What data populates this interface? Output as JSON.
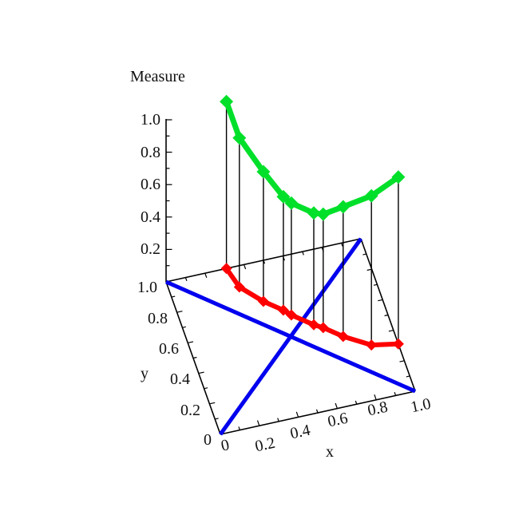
{
  "figure": {
    "title": "Measure",
    "x_axis": {
      "label": "x",
      "tick_labels": [
        "0",
        "0.2",
        "0.4",
        "0.6",
        "0.8",
        "1.0"
      ]
    },
    "y_axis": {
      "label": "y",
      "tick_labels": [
        "1.0",
        "0.8",
        "0.6",
        "0.4",
        "0.2",
        "0"
      ]
    },
    "z_axis": {
      "label": "Measure",
      "tick_labels": [
        "1.0",
        "0.8",
        "0.6",
        "0.4",
        "0.2"
      ]
    }
  },
  "chart_data": {
    "type": "line",
    "subtype": "3d space curve with base-plane projection path and drop lines",
    "title": "Measure",
    "xlabel": "x",
    "ylabel": "y",
    "zlabel": "Measure",
    "xlim": [
      0,
      1
    ],
    "ylim": [
      0,
      1
    ],
    "zlim": [
      0,
      1
    ],
    "x_tick_values": [
      0,
      0.2,
      0.4,
      0.6,
      0.8,
      1.0
    ],
    "y_tick_values": [
      0,
      0.2,
      0.4,
      0.6,
      0.8,
      1.0
    ],
    "z_tick_values": [
      0.2,
      0.4,
      0.6,
      0.8,
      1.0
    ],
    "minor_tick_step": 0.1,
    "grid": false,
    "legend": "none",
    "colors": {
      "measure": "#00e02a",
      "path": "#fe0000",
      "diagonal": "#0000ee",
      "axis": "#000000",
      "background": "#ffffff"
    },
    "path_xy": [
      [
        0.31,
        1.0
      ],
      [
        0.34,
        0.87
      ],
      [
        0.43,
        0.75
      ],
      [
        0.51,
        0.67
      ],
      [
        0.54,
        0.63
      ],
      [
        0.63,
        0.54
      ],
      [
        0.67,
        0.51
      ],
      [
        0.75,
        0.43
      ],
      [
        0.87,
        0.34
      ],
      [
        1.0,
        0.31
      ]
    ],
    "measure_values": [
      1.03,
      0.92,
      0.8,
      0.7,
      0.69,
      0.69,
      0.7,
      0.8,
      0.92,
      1.03
    ],
    "diagonals": [
      [
        [
          0,
          1
        ],
        [
          1,
          0
        ]
      ],
      [
        [
          0,
          0
        ],
        [
          1,
          1
        ]
      ]
    ],
    "drop_lines": true,
    "series": [
      {
        "name": "measure curve",
        "color": "#00e02a",
        "marker": "diamond"
      },
      {
        "name": "path in xy-plane",
        "color": "#fe0000",
        "marker": "diamond"
      },
      {
        "name": "base diagonals",
        "color": "#0000ee",
        "marker": "none"
      }
    ]
  }
}
